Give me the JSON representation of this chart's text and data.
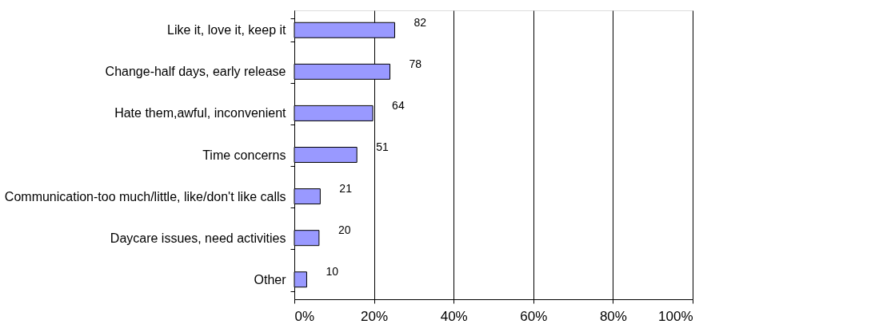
{
  "chart_data": {
    "type": "bar",
    "orientation": "horizontal",
    "categories": [
      "Like it, love it, keep it",
      "Change-half days, early release",
      "Hate them,awful, inconvenient",
      "Time concerns",
      "Communication-too much/little, like/don't like calls",
      "Daycare issues, need activities",
      "Other"
    ],
    "values": [
      25.2,
      24.0,
      19.7,
      15.7,
      6.5,
      6.2,
      3.1
    ],
    "annotations": [
      {
        "text": "82",
        "x": 25.2,
        "y": "Like it, love it, keep it"
      },
      {
        "text": "78",
        "x": 24.0,
        "y": "Change-half days, early release"
      },
      {
        "text": "64",
        "x": 19.7,
        "y": "Hate them,awful, inconvenient"
      },
      {
        "text": "51",
        "x": 15.7,
        "y": "Time concerns"
      },
      {
        "text": "21",
        "x": 6.5,
        "y": "Communication-too much/little, like/don't like calls"
      },
      {
        "text": "20",
        "x": 6.2,
        "y": "Daycare issues, need activities"
      },
      {
        "text": "10",
        "x": 3.1,
        "y": "Other"
      }
    ],
    "color": "#9999ff",
    "xlim": [
      0,
      100
    ],
    "xticks": [
      {
        "value": 0,
        "label": "0%"
      },
      {
        "value": 20,
        "label": "20%"
      },
      {
        "value": 40,
        "label": "40%"
      },
      {
        "value": 60,
        "label": "60%"
      },
      {
        "value": 80,
        "label": "80%"
      },
      {
        "value": 100,
        "label": "100%"
      }
    ],
    "grid": "x"
  }
}
